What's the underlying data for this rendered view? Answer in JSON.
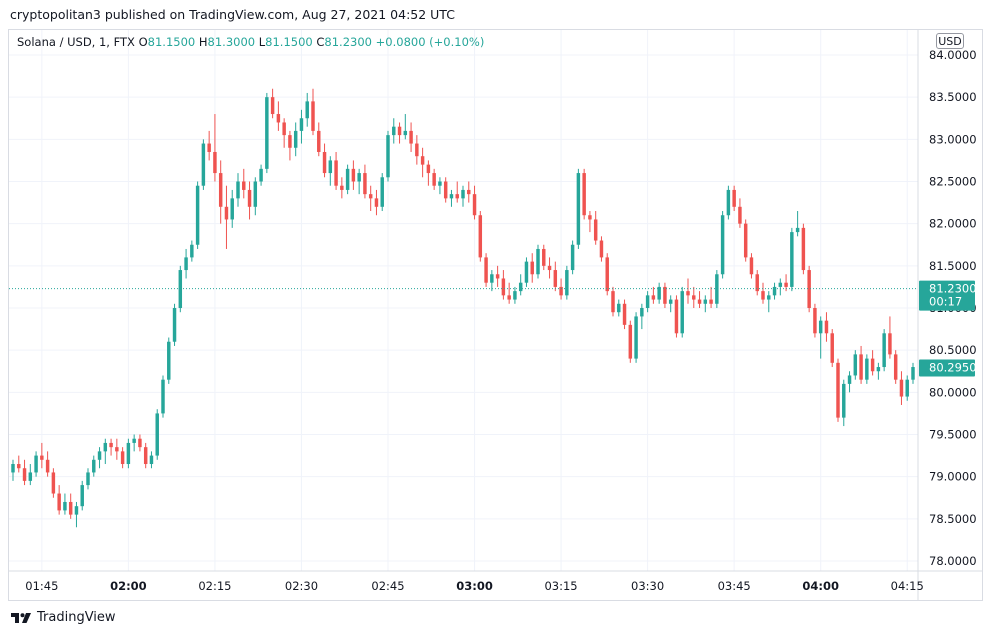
{
  "header": {
    "published_text": "cryptopolitan3 published on TradingView.com, Aug 27, 2021 04:52 UTC"
  },
  "legend": {
    "symbol": "Solana / USD, 1, FTX",
    "open_label": "O",
    "open_value": "81.1500",
    "high_label": "H",
    "high_value": "81.3000",
    "low_label": "L",
    "low_value": "81.1500",
    "close_label": "C",
    "close_value": "81.2300",
    "change": "+0.0800 (+0.10%)"
  },
  "currency_badge": "USD",
  "footer": {
    "brand": "TradingView"
  },
  "colors": {
    "up": "#26a69a",
    "down": "#ef5350",
    "grid": "#f0f3fa",
    "text": "#131722"
  },
  "chart_data": {
    "type": "candlestick",
    "ylim": [
      77.9,
      84.1
    ],
    "y_ticks": [
      "78.0000",
      "78.5000",
      "79.0000",
      "79.5000",
      "80.0000",
      "80.5000",
      "81.0000",
      "81.5000",
      "82.0000",
      "82.5000",
      "83.0000",
      "83.5000",
      "84.0000"
    ],
    "x_ticks": [
      {
        "label": "01:45",
        "bold": false,
        "index": 5
      },
      {
        "label": "02:00",
        "bold": true,
        "index": 20
      },
      {
        "label": "02:15",
        "bold": false,
        "index": 35
      },
      {
        "label": "02:30",
        "bold": false,
        "index": 50
      },
      {
        "label": "02:45",
        "bold": false,
        "index": 65
      },
      {
        "label": "03:00",
        "bold": true,
        "index": 80
      },
      {
        "label": "03:15",
        "bold": false,
        "index": 95
      },
      {
        "label": "03:30",
        "bold": false,
        "index": 110
      },
      {
        "label": "03:45",
        "bold": false,
        "index": 125
      },
      {
        "label": "04:00",
        "bold": true,
        "index": 140
      },
      {
        "label": "04:15",
        "bold": false,
        "index": 155
      }
    ],
    "last_price_label": "81.2300",
    "last_price_countdown": "00:17",
    "last_price_value": 81.23,
    "marker_price_label": "80.2950",
    "marker_price_value": 80.295,
    "ohlc": [
      [
        79.05,
        79.2,
        78.95,
        79.15
      ],
      [
        79.15,
        79.25,
        79.05,
        79.1
      ],
      [
        79.1,
        79.2,
        78.9,
        78.95
      ],
      [
        78.95,
        79.15,
        78.9,
        79.05
      ],
      [
        79.05,
        79.3,
        79.0,
        79.25
      ],
      [
        79.25,
        79.4,
        79.1,
        79.2
      ],
      [
        79.2,
        79.3,
        79.0,
        79.05
      ],
      [
        79.05,
        79.1,
        78.75,
        78.8
      ],
      [
        78.8,
        78.9,
        78.55,
        78.6
      ],
      [
        78.6,
        78.8,
        78.55,
        78.7
      ],
      [
        78.7,
        78.8,
        78.5,
        78.55
      ],
      [
        78.55,
        78.7,
        78.4,
        78.65
      ],
      [
        78.65,
        78.95,
        78.6,
        78.9
      ],
      [
        78.9,
        79.1,
        78.85,
        79.05
      ],
      [
        79.05,
        79.25,
        79.0,
        79.2
      ],
      [
        79.2,
        79.35,
        79.1,
        79.3
      ],
      [
        79.3,
        79.45,
        79.15,
        79.4
      ],
      [
        79.4,
        79.45,
        79.25,
        79.35
      ],
      [
        79.35,
        79.45,
        79.2,
        79.3
      ],
      [
        79.3,
        79.35,
        79.1,
        79.15
      ],
      [
        79.15,
        79.45,
        79.1,
        79.4
      ],
      [
        79.4,
        79.5,
        79.3,
        79.45
      ],
      [
        79.45,
        79.5,
        79.3,
        79.35
      ],
      [
        79.35,
        79.4,
        79.1,
        79.15
      ],
      [
        79.15,
        79.3,
        79.1,
        79.25
      ],
      [
        79.25,
        79.8,
        79.2,
        79.75
      ],
      [
        79.75,
        80.2,
        79.7,
        80.15
      ],
      [
        80.15,
        80.65,
        80.1,
        80.6
      ],
      [
        80.6,
        81.05,
        80.55,
        81.0
      ],
      [
        81.0,
        81.5,
        80.95,
        81.45
      ],
      [
        81.45,
        81.7,
        81.35,
        81.6
      ],
      [
        81.6,
        81.8,
        81.55,
        81.75
      ],
      [
        81.75,
        82.5,
        81.7,
        82.45
      ],
      [
        82.45,
        83.0,
        82.4,
        82.95
      ],
      [
        82.95,
        83.1,
        82.75,
        82.85
      ],
      [
        82.85,
        83.3,
        82.5,
        82.6
      ],
      [
        82.6,
        82.75,
        82.0,
        82.2
      ],
      [
        82.2,
        82.45,
        81.7,
        82.05
      ],
      [
        82.05,
        82.4,
        81.95,
        82.3
      ],
      [
        82.3,
        82.6,
        82.2,
        82.5
      ],
      [
        82.5,
        82.65,
        82.3,
        82.4
      ],
      [
        82.4,
        82.5,
        82.05,
        82.2
      ],
      [
        82.2,
        82.55,
        82.1,
        82.5
      ],
      [
        82.5,
        82.7,
        82.45,
        82.65
      ],
      [
        82.65,
        83.55,
        82.6,
        83.5
      ],
      [
        83.5,
        83.6,
        83.25,
        83.3
      ],
      [
        83.3,
        83.45,
        83.1,
        83.2
      ],
      [
        83.2,
        83.25,
        82.9,
        83.05
      ],
      [
        83.05,
        83.1,
        82.75,
        82.9
      ],
      [
        82.9,
        83.2,
        82.8,
        83.1
      ],
      [
        83.1,
        83.35,
        82.95,
        83.25
      ],
      [
        83.25,
        83.55,
        83.15,
        83.45
      ],
      [
        83.45,
        83.6,
        83.05,
        83.1
      ],
      [
        83.1,
        83.2,
        82.8,
        82.85
      ],
      [
        82.85,
        82.95,
        82.55,
        82.6
      ],
      [
        82.6,
        82.8,
        82.45,
        82.75
      ],
      [
        82.75,
        82.85,
        82.4,
        82.45
      ],
      [
        82.45,
        82.55,
        82.3,
        82.4
      ],
      [
        82.4,
        82.7,
        82.35,
        82.65
      ],
      [
        82.65,
        82.75,
        82.4,
        82.5
      ],
      [
        82.5,
        82.65,
        82.35,
        82.6
      ],
      [
        82.6,
        82.7,
        82.3,
        82.35
      ],
      [
        82.35,
        82.45,
        82.15,
        82.3
      ],
      [
        82.3,
        82.4,
        82.1,
        82.2
      ],
      [
        82.2,
        82.6,
        82.15,
        82.55
      ],
      [
        82.55,
        83.1,
        82.5,
        83.05
      ],
      [
        83.05,
        83.25,
        82.95,
        83.15
      ],
      [
        83.15,
        83.2,
        82.95,
        83.05
      ],
      [
        83.05,
        83.3,
        83.0,
        83.1
      ],
      [
        83.1,
        83.2,
        82.85,
        82.95
      ],
      [
        82.95,
        83.05,
        82.7,
        82.8
      ],
      [
        82.8,
        82.9,
        82.55,
        82.7
      ],
      [
        82.7,
        82.75,
        82.45,
        82.6
      ],
      [
        82.6,
        82.65,
        82.4,
        82.45
      ],
      [
        82.45,
        82.55,
        82.35,
        82.5
      ],
      [
        82.5,
        82.55,
        82.25,
        82.3
      ],
      [
        82.3,
        82.4,
        82.2,
        82.35
      ],
      [
        82.35,
        82.5,
        82.25,
        82.3
      ],
      [
        82.3,
        82.45,
        82.2,
        82.4
      ],
      [
        82.4,
        82.5,
        82.25,
        82.35
      ],
      [
        82.35,
        82.45,
        82.05,
        82.1
      ],
      [
        82.1,
        82.15,
        81.55,
        81.6
      ],
      [
        81.6,
        81.65,
        81.25,
        81.3
      ],
      [
        81.3,
        81.45,
        81.2,
        81.4
      ],
      [
        81.4,
        81.5,
        81.25,
        81.35
      ],
      [
        81.35,
        81.45,
        81.1,
        81.15
      ],
      [
        81.15,
        81.3,
        81.05,
        81.1
      ],
      [
        81.1,
        81.25,
        81.05,
        81.2
      ],
      [
        81.2,
        81.4,
        81.15,
        81.3
      ],
      [
        81.3,
        81.6,
        81.25,
        81.55
      ],
      [
        81.55,
        81.65,
        81.3,
        81.4
      ],
      [
        81.4,
        81.75,
        81.35,
        81.7
      ],
      [
        81.7,
        81.75,
        81.45,
        81.5
      ],
      [
        81.5,
        81.6,
        81.35,
        81.45
      ],
      [
        81.45,
        81.55,
        81.2,
        81.25
      ],
      [
        81.25,
        81.35,
        81.1,
        81.15
      ],
      [
        81.15,
        81.5,
        81.1,
        81.45
      ],
      [
        81.45,
        81.8,
        81.4,
        81.75
      ],
      [
        81.75,
        82.65,
        81.7,
        82.6
      ],
      [
        82.6,
        82.65,
        82.05,
        82.1
      ],
      [
        82.1,
        82.15,
        81.9,
        82.05
      ],
      [
        82.05,
        82.15,
        81.75,
        81.8
      ],
      [
        81.8,
        81.85,
        81.55,
        81.6
      ],
      [
        81.6,
        81.65,
        81.15,
        81.2
      ],
      [
        81.2,
        81.25,
        80.9,
        80.95
      ],
      [
        80.95,
        81.1,
        80.9,
        81.05
      ],
      [
        81.05,
        81.1,
        80.75,
        80.8
      ],
      [
        80.8,
        80.85,
        80.35,
        80.4
      ],
      [
        80.4,
        80.95,
        80.35,
        80.9
      ],
      [
        80.9,
        81.05,
        80.75,
        81.0
      ],
      [
        81.0,
        81.2,
        80.95,
        81.15
      ],
      [
        81.15,
        81.25,
        81.05,
        81.1
      ],
      [
        81.1,
        81.3,
        81.05,
        81.25
      ],
      [
        81.25,
        81.3,
        81.0,
        81.05
      ],
      [
        81.05,
        81.15,
        80.95,
        81.1
      ],
      [
        81.1,
        81.15,
        80.65,
        80.7
      ],
      [
        80.7,
        81.25,
        80.65,
        81.2
      ],
      [
        81.2,
        81.35,
        81.05,
        81.15
      ],
      [
        81.15,
        81.25,
        81.0,
        81.1
      ],
      [
        81.1,
        81.2,
        81.0,
        81.05
      ],
      [
        81.05,
        81.15,
        80.95,
        81.1
      ],
      [
        81.1,
        81.25,
        81.0,
        81.05
      ],
      [
        81.05,
        81.45,
        81.0,
        81.4
      ],
      [
        81.4,
        82.15,
        81.35,
        82.1
      ],
      [
        82.1,
        82.45,
        82.05,
        82.4
      ],
      [
        82.4,
        82.45,
        82.15,
        82.2
      ],
      [
        82.2,
        82.3,
        81.95,
        82.0
      ],
      [
        82.0,
        82.05,
        81.55,
        81.6
      ],
      [
        81.6,
        81.65,
        81.35,
        81.4
      ],
      [
        81.4,
        81.45,
        81.15,
        81.2
      ],
      [
        81.2,
        81.3,
        81.05,
        81.1
      ],
      [
        81.1,
        81.2,
        80.95,
        81.15
      ],
      [
        81.15,
        81.3,
        81.1,
        81.25
      ],
      [
        81.25,
        81.35,
        81.15,
        81.3
      ],
      [
        81.3,
        81.4,
        81.2,
        81.25
      ],
      [
        81.25,
        81.95,
        81.2,
        81.9
      ],
      [
        81.9,
        82.15,
        81.85,
        81.95
      ],
      [
        81.95,
        82.0,
        81.4,
        81.45
      ],
      [
        81.45,
        81.5,
        80.95,
        81.0
      ],
      [
        81.0,
        81.05,
        80.65,
        80.7
      ],
      [
        80.7,
        80.9,
        80.4,
        80.85
      ],
      [
        80.85,
        80.95,
        80.6,
        80.7
      ],
      [
        80.7,
        80.75,
        80.3,
        80.35
      ],
      [
        80.35,
        80.4,
        79.65,
        79.7
      ],
      [
        79.7,
        80.15,
        79.6,
        80.1
      ],
      [
        80.1,
        80.25,
        80.0,
        80.2
      ],
      [
        80.2,
        80.5,
        80.15,
        80.45
      ],
      [
        80.45,
        80.55,
        80.1,
        80.15
      ],
      [
        80.15,
        80.45,
        80.1,
        80.4
      ],
      [
        80.4,
        80.5,
        80.2,
        80.25
      ],
      [
        80.25,
        80.35,
        80.15,
        80.3
      ],
      [
        80.3,
        80.75,
        80.25,
        80.7
      ],
      [
        80.7,
        80.9,
        80.4,
        80.45
      ],
      [
        80.45,
        80.5,
        80.1,
        80.15
      ],
      [
        80.15,
        80.25,
        79.85,
        79.95
      ],
      [
        79.95,
        80.2,
        79.9,
        80.15
      ],
      [
        80.15,
        80.35,
        80.1,
        80.3
      ]
    ]
  }
}
